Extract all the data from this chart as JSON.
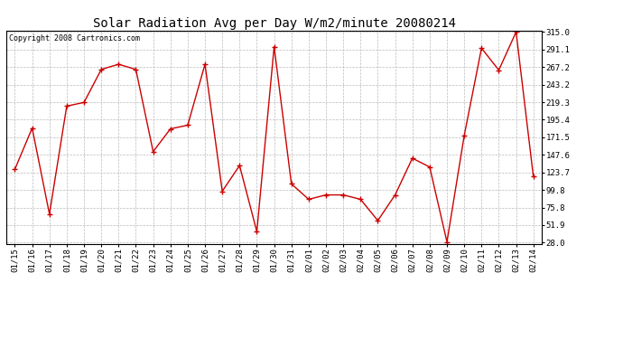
{
  "title": "Solar Radiation Avg per Day W/m2/minute 20080214",
  "copyright": "Copyright 2008 Cartronics.com",
  "line_color": "#cc0000",
  "marker_color": "#cc0000",
  "bg_color": "#ffffff",
  "grid_color": "#bbbbbb",
  "dates": [
    "01/15",
    "01/16",
    "01/17",
    "01/18",
    "01/19",
    "01/20",
    "01/21",
    "01/22",
    "01/23",
    "01/24",
    "01/25",
    "01/26",
    "01/27",
    "01/28",
    "01/29",
    "01/30",
    "01/31",
    "02/01",
    "02/02",
    "02/03",
    "02/04",
    "02/05",
    "02/06",
    "02/07",
    "02/08",
    "02/09",
    "02/10",
    "02/11",
    "02/12",
    "02/13",
    "02/14"
  ],
  "values": [
    128,
    184,
    67,
    214,
    219,
    264,
    271,
    264,
    152,
    183,
    188,
    271,
    98,
    133,
    43,
    295,
    108,
    87,
    93,
    93,
    87,
    58,
    93,
    143,
    131,
    29,
    174,
    293,
    263,
    315,
    118
  ],
  "yticks": [
    28.0,
    51.9,
    75.8,
    99.8,
    123.7,
    147.6,
    171.5,
    195.4,
    219.3,
    243.2,
    267.2,
    291.1,
    315.0
  ],
  "ymin": 28.0,
  "ymax": 315.0,
  "title_fontsize": 10,
  "copyright_fontsize": 6,
  "tick_fontsize": 6.5
}
